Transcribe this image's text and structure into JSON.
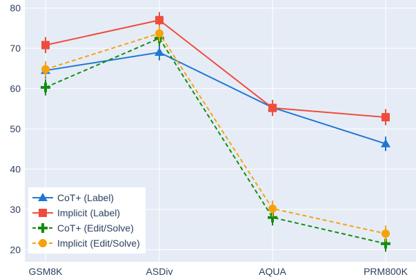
{
  "chart_data": {
    "type": "line",
    "title": "",
    "xlabel": "",
    "ylabel": "",
    "categories": [
      "GSM8K",
      "ASDiv",
      "AQUA",
      "PRM800K"
    ],
    "ylim": [
      17,
      82
    ],
    "yticks": [
      20,
      30,
      40,
      50,
      60,
      70,
      80
    ],
    "grid": true,
    "legend_position": "bottom-left",
    "series": [
      {
        "name": "CoT+ (Label)",
        "values": [
          64.5,
          69.0,
          55.3,
          46.3
        ],
        "errors": [
          2.0,
          2.0,
          1.5,
          1.8
        ],
        "color": "#1f77d4",
        "marker": "triangle",
        "dash": "solid"
      },
      {
        "name": "Implicit (Label)",
        "values": [
          70.8,
          77.0,
          55.2,
          52.9
        ],
        "errors": [
          2.0,
          2.0,
          2.0,
          2.0
        ],
        "color": "#ef4c3b",
        "marker": "square",
        "dash": "solid"
      },
      {
        "name": "CoT+ (Edit/Solve)",
        "values": [
          60.3,
          72.5,
          28.0,
          21.5
        ],
        "errors": [
          2.0,
          2.0,
          2.0,
          2.0
        ],
        "color": "#118c11",
        "marker": "cross",
        "dash": "dash"
      },
      {
        "name": "Implicit (Edit/Solve)",
        "values": [
          64.8,
          73.7,
          30.2,
          24.0
        ],
        "errors": [
          2.0,
          2.0,
          2.0,
          2.0
        ],
        "color": "#f5a20f",
        "marker": "circle",
        "dash": "dash"
      }
    ]
  }
}
